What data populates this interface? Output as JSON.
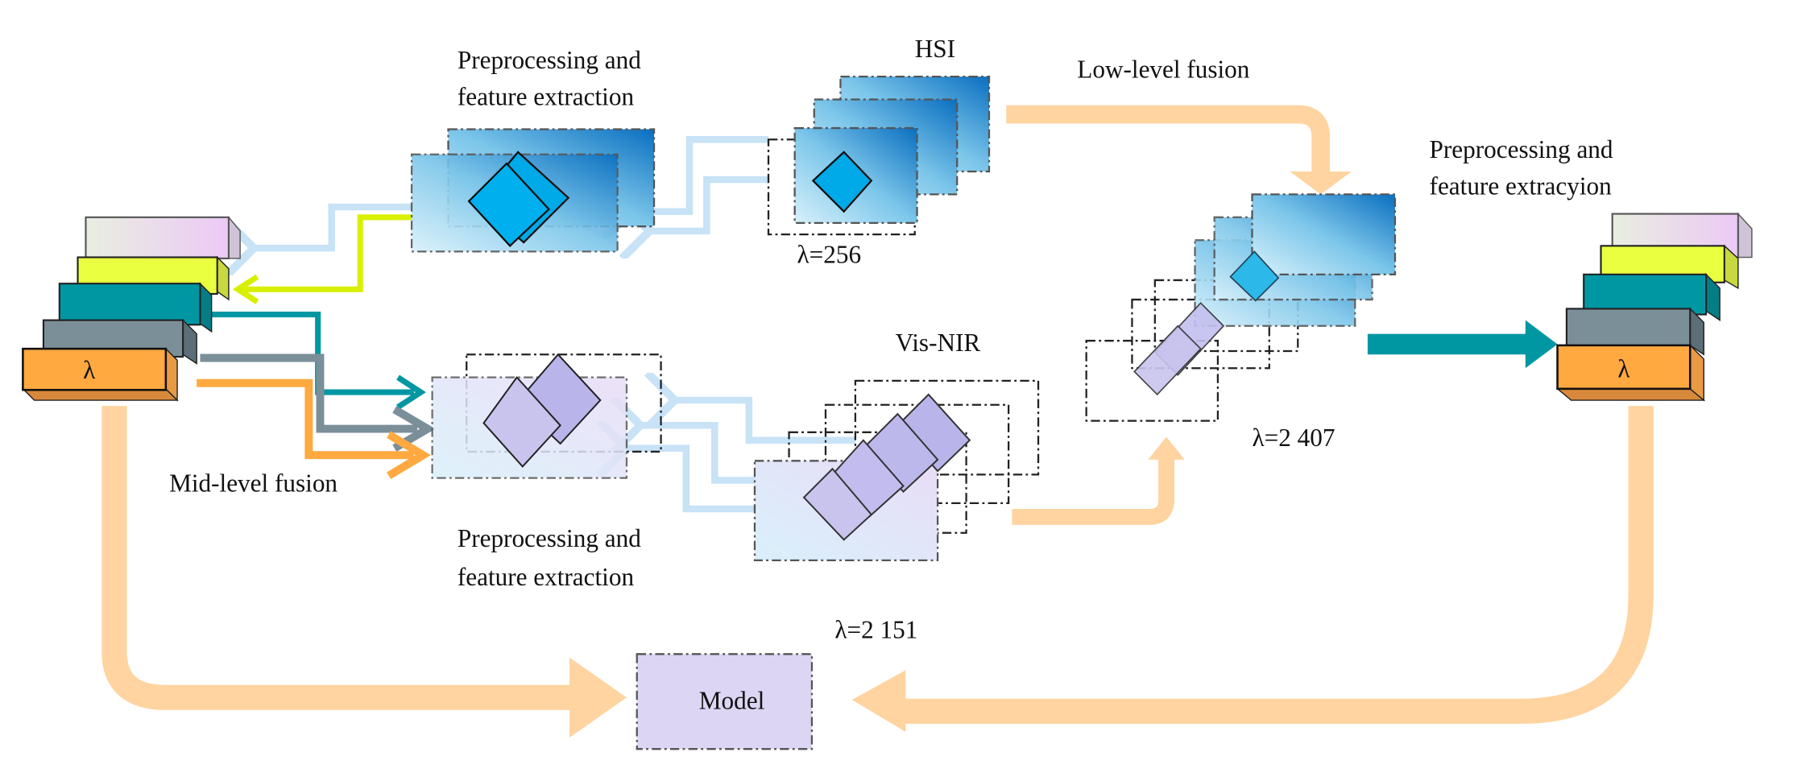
{
  "labels": {
    "hsi": "HSI",
    "vis_nir": "Vis-NIR",
    "top_feature_1": "Preprocessing and",
    "top_feature_2": "feature extraction",
    "bottom_feature_1": "Preprocessing and",
    "bottom_feature_2": "feature extraction",
    "right_feature_1": "Preprocessing and",
    "right_feature_2": "feature extracyion",
    "low_level": "Low-level fusion",
    "mid_level": "Mid-level fusion",
    "lambda_hsi": "λ=256",
    "lambda_visnir": "λ=2 151",
    "lambda_fused": "λ=2 407",
    "model": "Model",
    "stack_lambda_left": "λ",
    "stack_lambda_right": "λ"
  },
  "colors": {
    "flow_arrow": "#ffd4a0",
    "light_blue_arrow": "#c8e2f6",
    "yellow": "#e9ff40",
    "teal": "#0097a3",
    "grey": "#7b8f99",
    "orange": "#ffa940",
    "model_fill": "#dcd5f3"
  }
}
